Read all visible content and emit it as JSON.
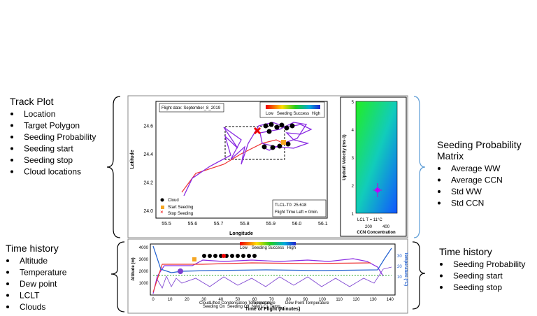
{
  "left": {
    "track": {
      "title": "Track Plot",
      "items": [
        "Location",
        "Target Polygon",
        "Seeding Probability",
        "Seeding start",
        "Seeding stop",
        "Cloud locations"
      ]
    },
    "time": {
      "title": "Time history",
      "items": [
        "Altitude",
        "Temperature",
        "Dew point",
        "LCLT",
        "Clouds"
      ]
    }
  },
  "right": {
    "matrix": {
      "title": [
        "Seeding Probability",
        "Matrix"
      ],
      "items": [
        "Average WW",
        "Average CCN",
        "Std WW",
        "Std CCN"
      ]
    },
    "time": {
      "title": "Time history",
      "items": [
        "Seeding Probability",
        "Seeding start",
        "Seeding stop"
      ]
    }
  },
  "track_plot": {
    "date": "Flight date: September_8_2019",
    "colorbar": [
      "Low",
      "Seeding Success",
      "High"
    ],
    "xlabel": "Longitude",
    "ylabel": "Latitude",
    "xticks": [
      "55.5",
      "55.6",
      "55.7",
      "55.8",
      "55.9",
      "56.0",
      "56.1"
    ],
    "yticks": [
      "24.0",
      "24.2",
      "24.4",
      "24.6"
    ],
    "legend": [
      "Cloud",
      "Start Seeding",
      "Stop Seeding"
    ],
    "info": [
      "TLCL-T0: 25.618",
      "Flight Time Left = 0min."
    ]
  },
  "matrix": {
    "yticks": [
      "1",
      "2",
      "3",
      "4",
      "5"
    ],
    "xticks": [
      "200",
      "400"
    ],
    "ylabel": "Updraft Velocity (ms-1)",
    "xlabel": "CCN Concentration",
    "note": "LCL T = 11°C"
  },
  "time_plot": {
    "yticks": [
      "1000",
      "2000",
      "3000",
      "4000"
    ],
    "ylabel": "Altitude (m)",
    "y2ticks": [
      "10",
      "20",
      "30"
    ],
    "y2label": "Temperature (°C)",
    "xticks": [
      "0",
      "10",
      "20",
      "30",
      "40",
      "50",
      "60",
      "70",
      "80",
      "90",
      "100",
      "110",
      "120",
      "130",
      "140"
    ],
    "xlabel": "Time of Flight (Minutes)",
    "colorbar": [
      "Low",
      "Seeding Success",
      "High"
    ],
    "legend": [
      "Cloud",
      "Lifted Condensation Temperature",
      "Temperature",
      "Dew Point Temperature",
      "Seeding On",
      "Seeding Off",
      "New LCL Temp"
    ]
  }
}
